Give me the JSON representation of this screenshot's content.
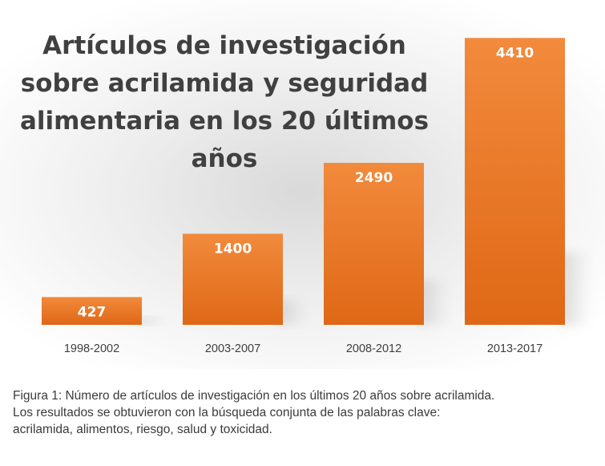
{
  "chart_data": {
    "type": "bar",
    "title": "Artículos de investigación sobre acrilamida y seguridad alimentaria en los 20 últimos años",
    "categories": [
      "1998-2002",
      "2003-2007",
      "2008-2012",
      "2013-2017"
    ],
    "values": [
      427,
      1400,
      2490,
      4410
    ],
    "data_labels": [
      "427",
      "1400",
      "2490",
      "4410"
    ],
    "xlabel": "",
    "ylabel": "",
    "ylim": [
      0,
      4500
    ],
    "grid": false,
    "legend": "none",
    "colors": {
      "bar_top": "#f28a3c",
      "bar_bottom": "#df6816",
      "label_text": "#ffffff",
      "axis_text": "#404040"
    }
  },
  "caption": {
    "line1": "Figura 1: Número de artículos de investigación en los últimos 20 años sobre acrilamida.",
    "line2": "Los resultados se obtuvieron con la búsqueda conjunta de las palabras clave:",
    "line3": "acrilamida, alimentos, riesgo, salud y toxicidad."
  }
}
